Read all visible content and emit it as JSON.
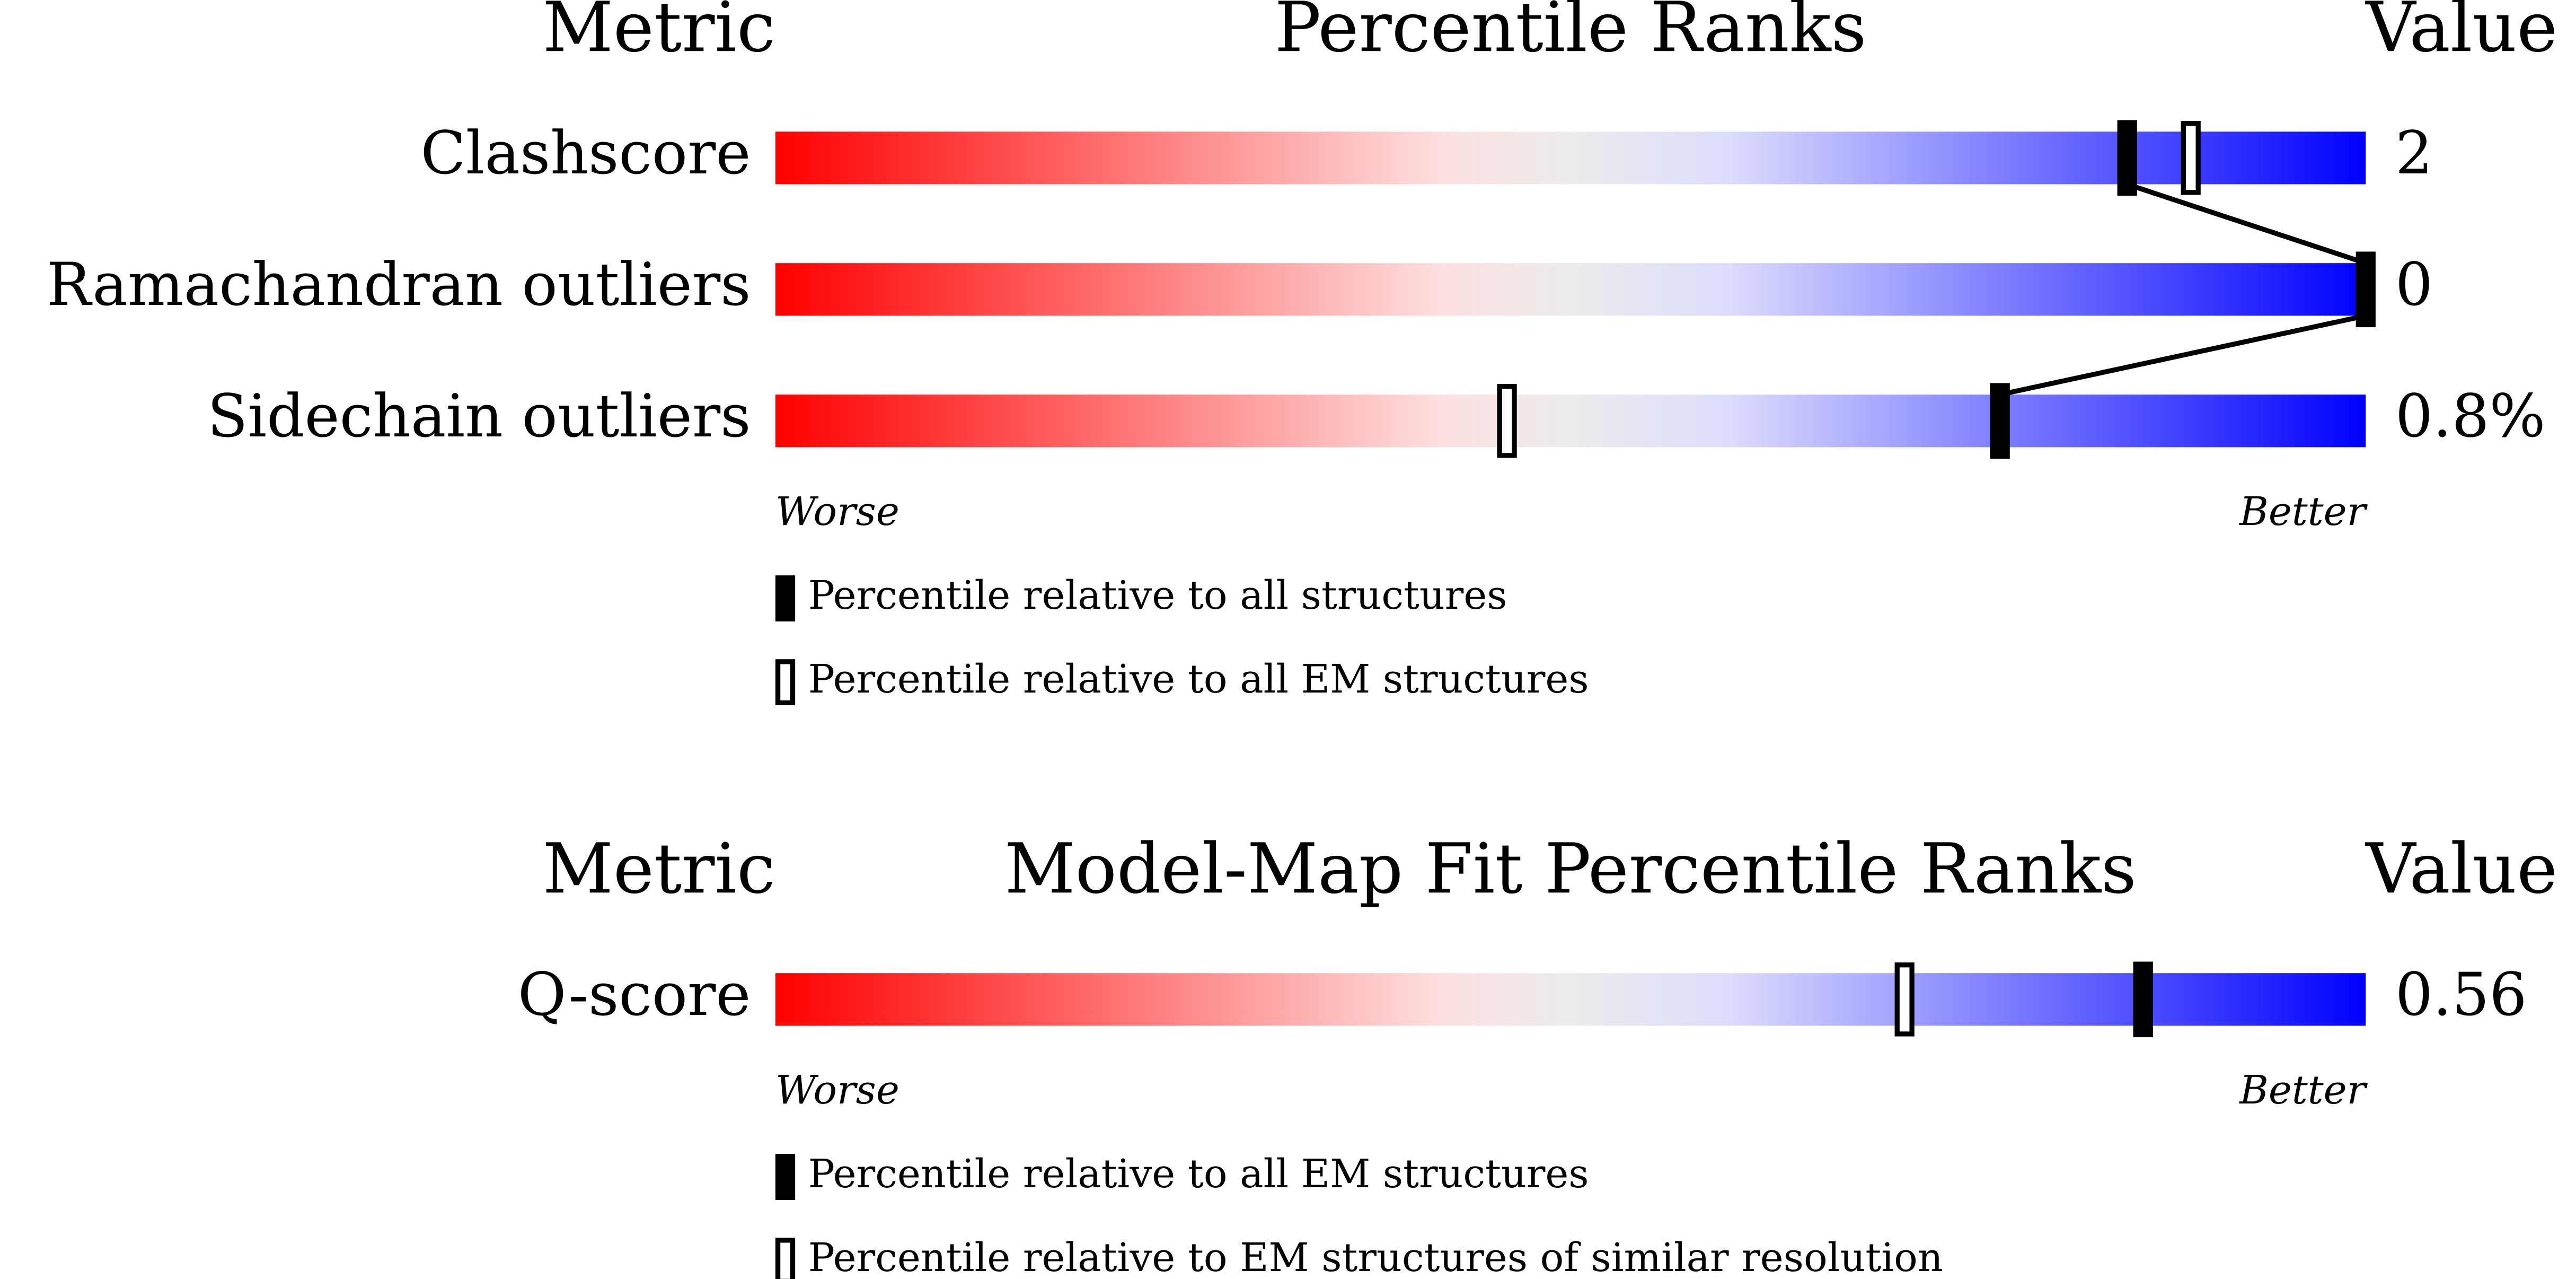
{
  "panels": [
    {
      "header": {
        "metric": "Metric",
        "title": "Percentile Ranks",
        "value": "Value"
      },
      "rows": [
        {
          "label": "Clashscore",
          "value": "2",
          "markers": [
            {
              "value": 85,
              "filled": true
            },
            {
              "value": 89,
              "filled": false
            }
          ]
        },
        {
          "label": "Ramachandran outliers",
          "value": "0",
          "markers": [
            {
              "value": 100,
              "filled": true
            }
          ]
        },
        {
          "label": "Sidechain outliers",
          "value": "0.8%",
          "markers": [
            {
              "value": 77,
              "filled": true
            },
            {
              "value": 46,
              "filled": false
            }
          ]
        }
      ],
      "scale": {
        "worse": "Worse",
        "better": "Better"
      },
      "legend": [
        {
          "text": "Percentile relative to all structures",
          "filled": true
        },
        {
          "text": "Percentile relative to all EM structures",
          "filled": false
        }
      ],
      "connect": true
    },
    {
      "header": {
        "metric": "Metric",
        "title": "Model-Map Fit Percentile Ranks",
        "value": "Value"
      },
      "rows": [
        {
          "label": "Q-score",
          "value": "0.56",
          "markers": [
            {
              "value": 71,
              "filled": false
            },
            {
              "value": 86,
              "filled": true
            }
          ]
        }
      ],
      "scale": {
        "worse": "Worse",
        "better": "Better"
      },
      "legend": [
        {
          "text": "Percentile relative to all EM structures",
          "filled": true
        },
        {
          "text": "Percentile relative to EM structures of similar resolution",
          "filled": false
        }
      ],
      "connect": false
    }
  ],
  "xlim": [
    0,
    100
  ]
}
